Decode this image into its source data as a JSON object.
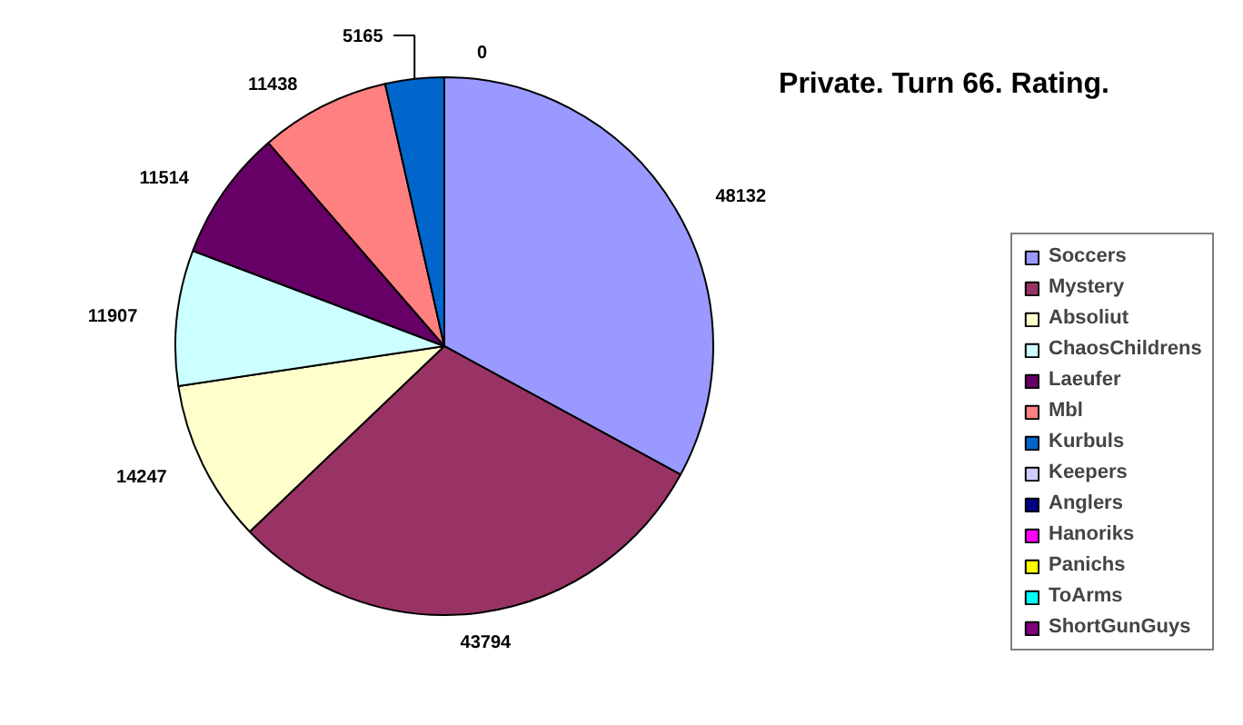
{
  "chart_data": {
    "type": "pie",
    "title": "Private. Turn 66. Rating.",
    "categories": [
      "Soccers",
      "Mystery",
      "Absoliut",
      "ChaosChildrens",
      "Laeufer",
      "Mbl",
      "Kurbuls",
      "Keepers",
      "Anglers",
      "Hanoriks",
      "Panichs",
      "ToArms",
      "ShortGunGuys"
    ],
    "values": [
      48132,
      43794,
      14247,
      11907,
      11514,
      11438,
      5165,
      0,
      0,
      0,
      0,
      0,
      0
    ],
    "value_labels": [
      "48132",
      "43794",
      "14247",
      "11907",
      "11514",
      "11438",
      "5165",
      null,
      null,
      null,
      null,
      null,
      "0"
    ],
    "colors": [
      "#9999ff",
      "#993366",
      "#ffffcc",
      "#ccffff",
      "#660066",
      "#ff8080",
      "#0066cc",
      "#ccccff",
      "#000080",
      "#ff00ff",
      "#ffff00",
      "#00ffff",
      "#800080"
    ],
    "legend": "right"
  }
}
